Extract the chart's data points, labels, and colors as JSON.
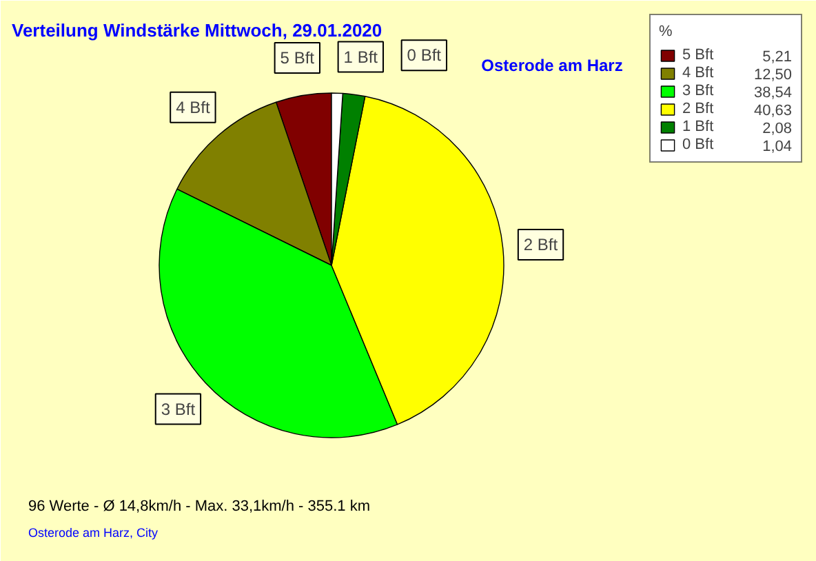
{
  "chart_data": {
    "type": "pie",
    "title": "Verteilung Windstärke  Mittwoch, 29.01.2020",
    "subtitle": "Osterode am Harz",
    "categories": [
      "5 Bft",
      "4 Bft",
      "3 Bft",
      "2 Bft",
      "1 Bft",
      "0 Bft"
    ],
    "values": [
      5.21,
      12.5,
      38.54,
      40.63,
      2.08,
      1.04
    ],
    "colors": [
      "#800000",
      "#808000",
      "#00ff00",
      "#ffff00",
      "#008000",
      "#ffffff"
    ],
    "legend": "top right",
    "legend_title": "%",
    "value_labels": [
      "5,21",
      "12,50",
      "38,54",
      "40,63",
      "2,08",
      "1,04"
    ],
    "annotations": [
      "96 Werte   -   Ø 14,8km/h  -  Max. 33,1km/h   -   355.1 km",
      "Osterode am Harz, City"
    ]
  }
}
